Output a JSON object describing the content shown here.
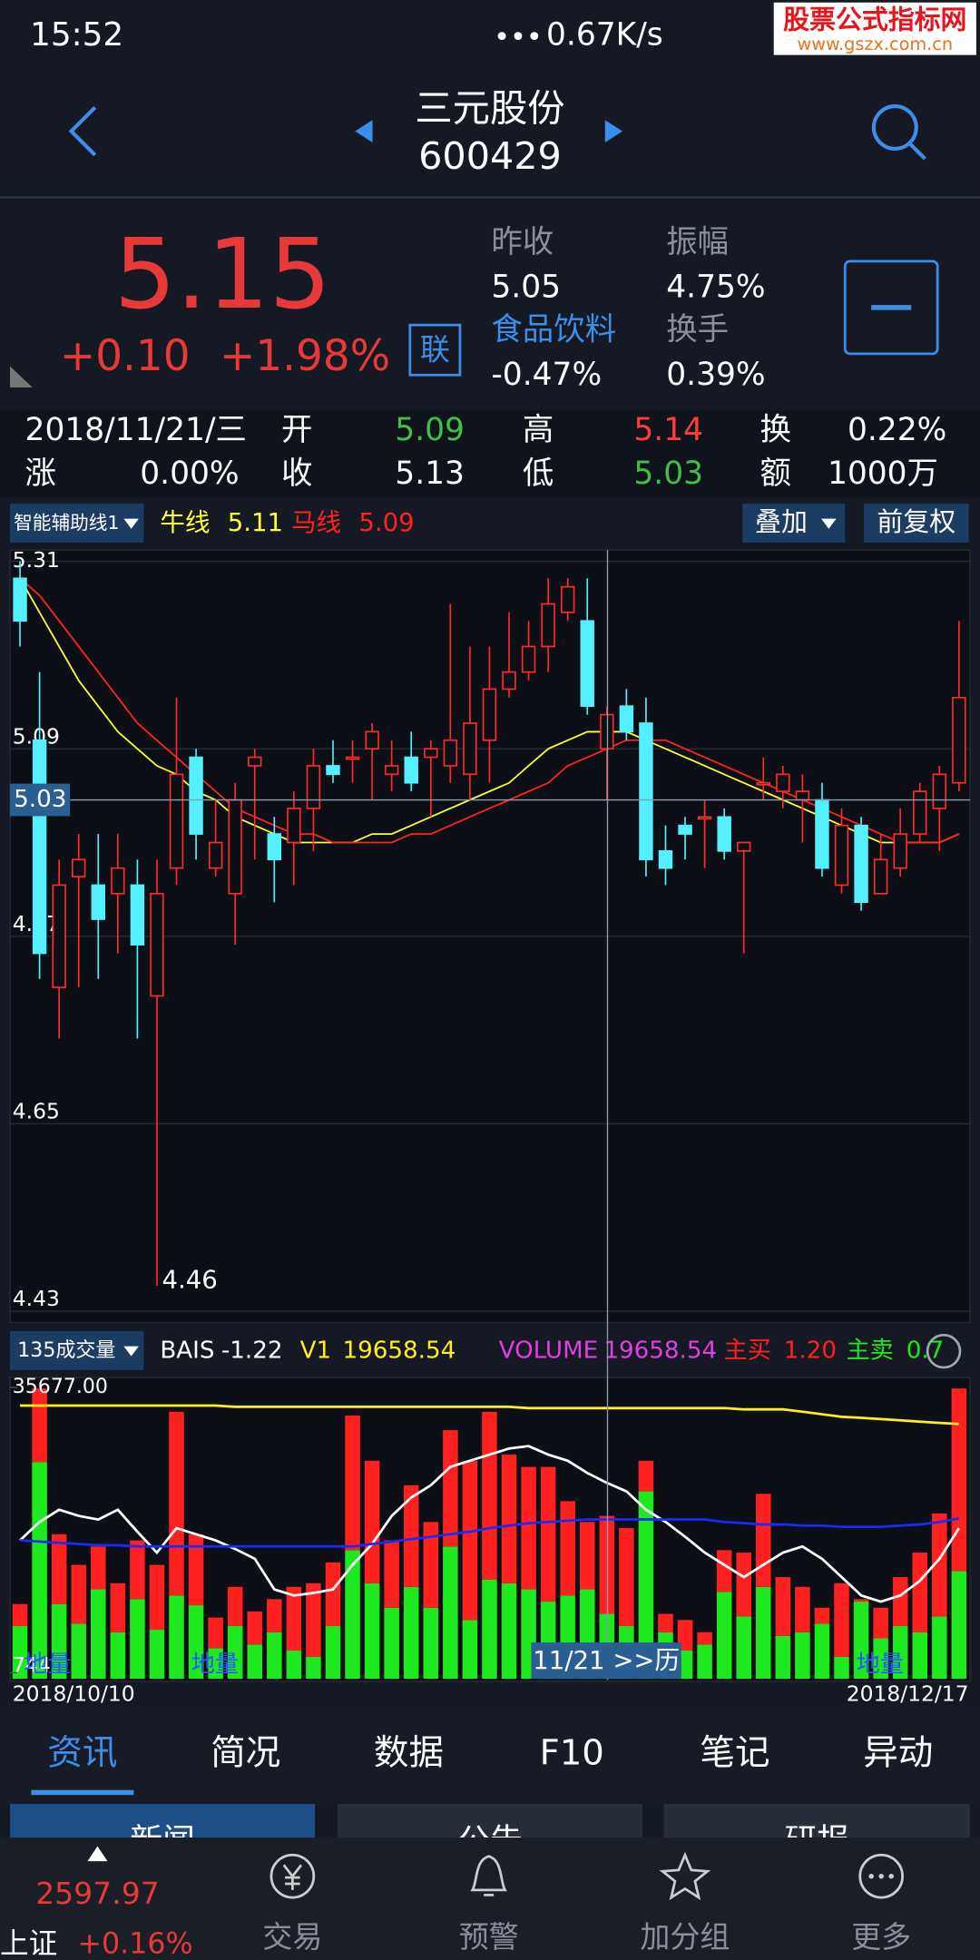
{
  "status_bar": {
    "time": "15:52",
    "speed": "0.67K/s"
  },
  "watermark": {
    "title": "股票公式指标网",
    "url": "www.gszx.com.cn"
  },
  "header": {
    "name": "三元股份",
    "code": "600429"
  },
  "quote": {
    "price": "5.15",
    "change": "+0.10",
    "change_pct": "+1.98%",
    "badge": "联",
    "fields": [
      {
        "label": "昨收",
        "value": "5.05"
      },
      {
        "label": "振幅",
        "value": "4.75%"
      },
      {
        "label": "食品饮料",
        "value": "-0.47%",
        "color": "#3d8ee8"
      },
      {
        "label": "换手",
        "value": "0.39%"
      }
    ]
  },
  "detail": {
    "date": "2018/11/21/三",
    "items": [
      {
        "label": "开",
        "value": "5.09",
        "color": "#3fc04a"
      },
      {
        "label": "高",
        "value": "5.14",
        "color": "#ff3b3b"
      },
      {
        "label": "换",
        "value": "0.22%"
      },
      {
        "label": "涨",
        "value": "0.00%"
      },
      {
        "label": "收",
        "value": "5.13"
      },
      {
        "label": "低",
        "value": "5.03",
        "color": "#3fc04a"
      },
      {
        "label": "额",
        "value": "1000万"
      }
    ]
  },
  "chart_controls": {
    "indicator": "智能辅助线1",
    "overlay": "叠加",
    "adjust": "前复权",
    "volume_indicator": "135成交量",
    "cursor_date": "11/21 >>历"
  },
  "chart_data": [
    {
      "type": "candlestick",
      "up_color": "#ff2a2a",
      "down_color": "#55f0ff",
      "grid": true,
      "open": [
        5.29,
        5.1,
        4.81,
        4.94,
        4.93,
        4.92,
        4.93,
        4.8,
        4.95,
        5.08,
        4.95,
        4.92,
        5.07,
        4.99,
        4.98,
        5.02,
        5.07,
        5.08,
        5.09,
        5.06,
        5.08,
        5.08,
        5.07,
        5.06,
        5.1,
        5.16,
        5.18,
        5.21,
        5.25,
        5.24,
        5.09,
        5.14,
        5.12,
        4.97,
        5.0,
        5.01,
        5.01,
        4.97,
        5.05,
        5.04,
        5.03,
        5.03,
        4.93,
        5.0,
        4.92,
        4.95,
        4.99,
        5.02,
        5.05
      ],
      "high": [
        5.31,
        5.18,
        4.96,
        4.99,
        4.99,
        4.99,
        4.96,
        4.96,
        5.15,
        5.09,
        5.03,
        5.05,
        5.09,
        5.01,
        5.04,
        5.09,
        5.1,
        5.1,
        5.12,
        5.1,
        5.11,
        5.1,
        5.26,
        5.21,
        5.21,
        5.25,
        5.24,
        5.29,
        5.29,
        5.29,
        5.14,
        5.16,
        5.15,
        5.0,
        5.01,
        5.03,
        5.02,
        4.98,
        5.08,
        5.07,
        5.06,
        5.05,
        5.02,
        5.01,
        4.99,
        5.02,
        5.05,
        5.07,
        5.24
      ],
      "low": [
        5.21,
        4.82,
        4.75,
        4.81,
        4.82,
        4.85,
        4.75,
        4.46,
        4.93,
        4.96,
        4.94,
        4.86,
        4.96,
        4.91,
        4.93,
        4.97,
        5.05,
        5.05,
        5.03,
        5.04,
        5.04,
        5.01,
        5.05,
        5.03,
        5.05,
        5.15,
        5.17,
        5.18,
        5.24,
        5.13,
        5.03,
        5.1,
        4.94,
        4.93,
        4.96,
        4.95,
        4.96,
        4.85,
        5.03,
        5.02,
        4.98,
        4.94,
        4.92,
        4.9,
        4.92,
        4.94,
        4.98,
        4.97,
        5.04
      ],
      "close": [
        5.24,
        4.85,
        4.93,
        4.96,
        4.89,
        4.95,
        4.86,
        4.92,
        5.06,
        4.99,
        4.98,
        5.03,
        5.08,
        4.96,
        5.02,
        5.07,
        5.06,
        5.08,
        5.11,
        5.07,
        5.05,
        5.09,
        5.1,
        5.12,
        5.16,
        5.18,
        5.21,
        5.26,
        5.28,
        5.14,
        5.13,
        5.11,
        4.96,
        4.95,
        4.99,
        5.01,
        4.97,
        4.98,
        5.05,
        5.06,
        5.04,
        4.95,
        5.0,
        4.91,
        4.96,
        4.99,
        5.04,
        5.06,
        5.15
      ],
      "series": [
        {
          "name": "牛线",
          "color": "#ffff33",
          "legend_value": "5.11",
          "values": [
            5.29,
            5.25,
            5.21,
            5.17,
            5.14,
            5.11,
            5.09,
            5.07,
            5.06,
            5.04,
            5.03,
            5.01,
            5.0,
            4.99,
            4.98,
            4.98,
            4.98,
            4.98,
            4.99,
            4.99,
            5.0,
            5.01,
            5.02,
            5.03,
            5.04,
            5.05,
            5.07,
            5.09,
            5.1,
            5.11,
            5.11,
            5.11,
            5.1,
            5.09,
            5.08,
            5.07,
            5.06,
            5.05,
            5.04,
            5.03,
            5.02,
            5.01,
            5.0,
            4.99,
            4.98,
            4.98,
            4.98,
            4.98,
            4.99
          ]
        },
        {
          "name": "马线",
          "color": "#ff2222",
          "legend_value": "5.09",
          "values": [
            5.29,
            5.27,
            5.24,
            5.21,
            5.18,
            5.15,
            5.12,
            5.1,
            5.08,
            5.06,
            5.04,
            5.02,
            5.01,
            5.0,
            4.99,
            4.99,
            4.98,
            4.98,
            4.98,
            4.98,
            4.99,
            4.99,
            5.0,
            5.01,
            5.02,
            5.03,
            5.04,
            5.05,
            5.07,
            5.08,
            5.09,
            5.1,
            5.1,
            5.1,
            5.09,
            5.08,
            5.07,
            5.06,
            5.05,
            5.04,
            5.03,
            5.02,
            5.01,
            5.0,
            4.99,
            4.98,
            4.98,
            4.98,
            4.99
          ]
        }
      ],
      "ylim": [
        4.43,
        5.31
      ],
      "yticks": [
        5.31,
        5.09,
        4.87,
        4.65,
        4.43
      ],
      "crosshair_y": 5.03
    },
    {
      "type": "bar",
      "stacked": true,
      "categories": [
        "2018/10/10",
        null,
        null,
        null,
        null,
        null,
        null,
        null,
        null,
        null,
        null,
        null,
        null,
        null,
        null,
        null,
        null,
        null,
        null,
        null,
        null,
        null,
        null,
        null,
        null,
        null,
        null,
        null,
        null,
        null,
        null,
        null,
        null,
        null,
        null,
        null,
        null,
        null,
        null,
        null,
        null,
        null,
        null,
        null,
        null,
        null,
        null,
        null,
        "2018/12/17"
      ],
      "ylim": [
        0,
        35677
      ],
      "yticks": [
        {
          "value": 35677,
          "label": "35677.00"
        },
        744
      ],
      "annotations": [
        "地量",
        "地量",
        "地量"
      ],
      "legend_extra": {
        "name": "VOLUME",
        "value": "19658.54",
        "color": "#e040e0"
      },
      "series": [
        {
          "name": "主卖",
          "color": "#1ee81e",
          "legend_value": "0.7",
          "values": [
            6450,
            26550,
            9150,
            6750,
            10950,
            5700,
            9750,
            6000,
            10200,
            9000,
            3750,
            6450,
            4200,
            5700,
            3450,
            2700,
            6450,
            15750,
            11700,
            8700,
            11250,
            8700,
            16200,
            7200,
            12150,
            11700,
            10950,
            9450,
            10200,
            10950,
            7950,
            6450,
            22950,
            5700,
            3450,
            4200,
            10650,
            7650,
            11250,
            5250,
            5700,
            6750,
            2700,
            9450,
            4950,
            6450,
            5700,
            7650,
            13200
          ]
        },
        {
          "name": "主买",
          "color": "#ff2020",
          "legend_value": "1.20",
          "values": [
            2700,
            9000,
            8550,
            7200,
            5250,
            6000,
            7200,
            7950,
            22500,
            8700,
            3750,
            4800,
            4050,
            4050,
            7800,
            9000,
            7800,
            16500,
            15000,
            8250,
            12450,
            10500,
            14250,
            19500,
            20550,
            15750,
            15000,
            16500,
            11550,
            8250,
            12000,
            12000,
            3750,
            2250,
            3750,
            1500,
            5100,
            7800,
            11400,
            7200,
            5550,
            1950,
            9000,
            300,
            3750,
            6000,
            9750,
            12600,
            22350
          ]
        },
        {
          "name": "V1",
          "type": "line",
          "color": "#ffee22",
          "legend_value": "19658.54",
          "values": [
            33450,
            33450,
            33450,
            33450,
            33450,
            33450,
            33450,
            33450,
            33450,
            33450,
            33450,
            33300,
            33300,
            33300,
            33300,
            33300,
            33300,
            33300,
            33300,
            33300,
            33300,
            33300,
            33300,
            33300,
            33300,
            33300,
            33150,
            33150,
            33150,
            33150,
            33150,
            33150,
            33150,
            33150,
            33150,
            33150,
            33150,
            33000,
            33000,
            33000,
            32700,
            32400,
            32100,
            31950,
            31800,
            31650,
            31500,
            31350,
            31200
          ]
        },
        {
          "name": "BAIS",
          "type": "line",
          "color": "#ffffff",
          "legend_value": "-1.22",
          "values": [
            16950,
            19200,
            20700,
            19950,
            19500,
            20700,
            18000,
            15450,
            18450,
            17700,
            16950,
            15900,
            14700,
            10950,
            10200,
            10500,
            10950,
            13950,
            16500,
            19950,
            22200,
            23700,
            25950,
            26700,
            27450,
            28200,
            28500,
            27450,
            26700,
            25200,
            24000,
            22950,
            20700,
            19200,
            17400,
            15450,
            13950,
            12450,
            13950,
            15450,
            16200,
            14700,
            12450,
            10200,
            9450,
            10200,
            12000,
            14700,
            18450
          ]
        },
        {
          "type": "line",
          "color": "#1a2aff",
          "values": [
            16950,
            16800,
            16650,
            16500,
            16350,
            16350,
            16200,
            16200,
            16200,
            16200,
            16200,
            16200,
            16200,
            16200,
            16200,
            16200,
            16200,
            16200,
            16500,
            16800,
            17100,
            17400,
            17700,
            18000,
            18450,
            18750,
            19050,
            19200,
            19350,
            19500,
            19500,
            19500,
            19500,
            19500,
            19500,
            19500,
            19200,
            19050,
            18900,
            18900,
            18750,
            18750,
            18600,
            18600,
            18600,
            18750,
            18900,
            19200,
            19650
          ]
        }
      ]
    }
  ],
  "tabs": {
    "items": [
      "资讯",
      "简况",
      "数据",
      "F10",
      "笔记",
      "异动"
    ],
    "sub": [
      "新闻",
      "公告",
      "研报"
    ]
  },
  "bottom_bar": {
    "index_value": "2597.97",
    "index_name": "上证",
    "index_change": "+0.16%",
    "items": [
      "交易",
      "预警",
      "加分组",
      "更多"
    ]
  }
}
